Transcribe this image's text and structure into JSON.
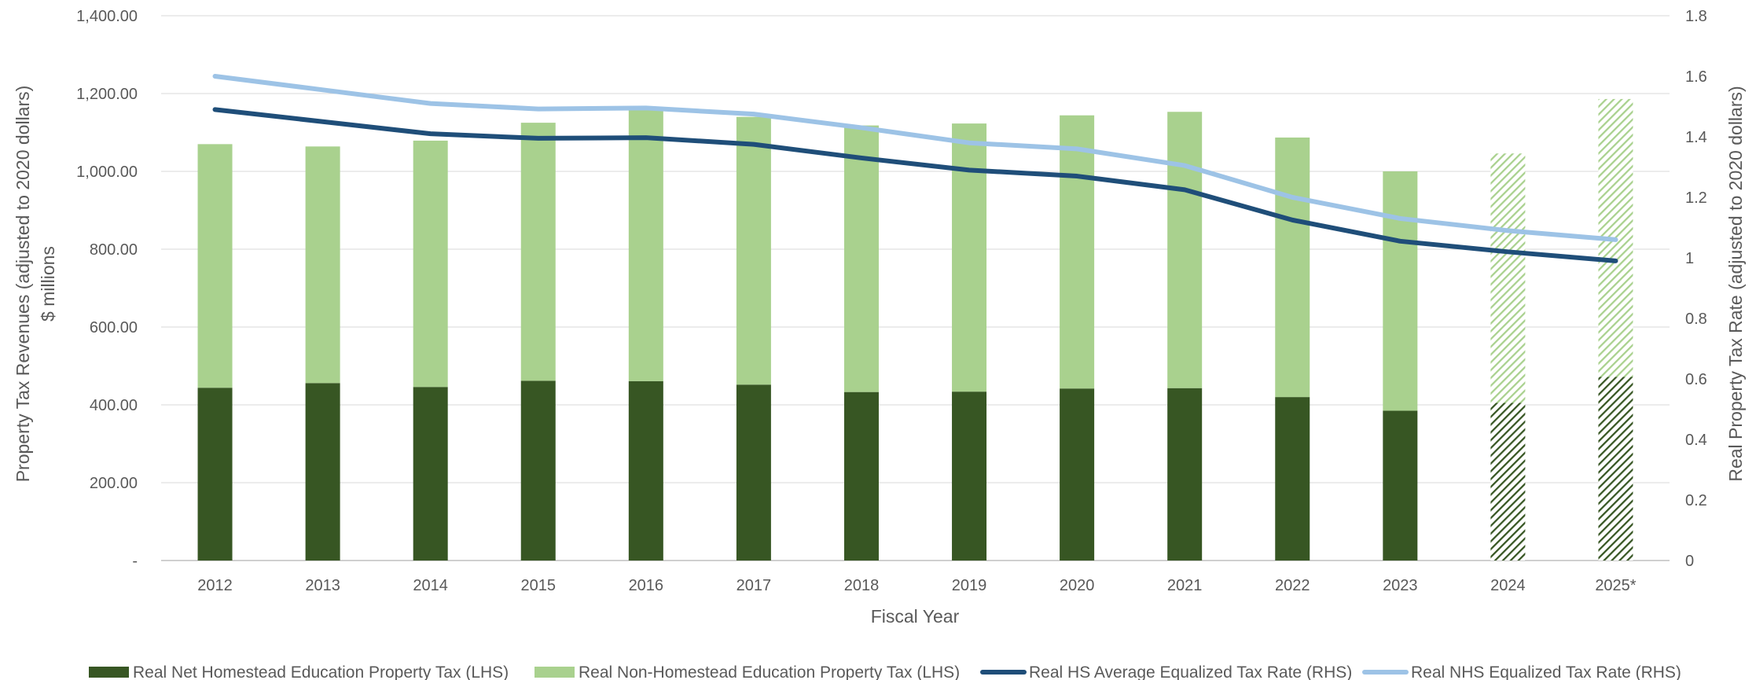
{
  "chart_data": {
    "type": "bar",
    "stacked": true,
    "categories": [
      "2012",
      "2013",
      "2014",
      "2015",
      "2016",
      "2017",
      "2018",
      "2019",
      "2020",
      "2021",
      "2022",
      "2023",
      "2024",
      "2025*"
    ],
    "projected_categories": [
      "2024",
      "2025*"
    ],
    "series": [
      {
        "name": "Real Net Homestead Education Property Tax (LHS)",
        "type": "bar",
        "axis": "left",
        "color": "#375623",
        "values": [
          444,
          456,
          446,
          462,
          461,
          452,
          433,
          434,
          442,
          443,
          420,
          385,
          405,
          472
        ]
      },
      {
        "name": "Real Non-Homestead Education Property Tax (LHS)",
        "type": "bar",
        "axis": "left",
        "color": "#a9d18e",
        "values": [
          626,
          608,
          633,
          663,
          697,
          688,
          685,
          689,
          702,
          710,
          667,
          615,
          641,
          714
        ]
      },
      {
        "name": "Real HS Average Equalized Tax Rate (RHS)",
        "type": "line",
        "axis": "right",
        "color": "#1f4e79",
        "values": [
          1.49,
          1.45,
          1.41,
          1.395,
          1.397,
          1.375,
          1.33,
          1.29,
          1.27,
          1.225,
          1.125,
          1.055,
          1.02,
          0.99
        ]
      },
      {
        "name": "Real NHS Equalized Tax Rate (RHS)",
        "type": "line",
        "axis": "right",
        "color": "#9dc3e6",
        "values": [
          1.6,
          1.555,
          1.51,
          1.492,
          1.495,
          1.475,
          1.43,
          1.38,
          1.36,
          1.305,
          1.2,
          1.13,
          1.09,
          1.06
        ]
      }
    ],
    "ylim_left": [
      0,
      1400
    ],
    "yticks_left": [
      "-",
      "200.00",
      "400.00",
      "600.00",
      "800.00",
      "1,000.00",
      "1,200.00",
      "1,400.00"
    ],
    "ylim_right": [
      0,
      1.8
    ],
    "yticks_right": [
      "0",
      "0.2",
      "0.4",
      "0.6",
      "0.8",
      "1",
      "1.2",
      "1.4",
      "1.6",
      "1.8"
    ],
    "xlabel": "Fiscal Year",
    "ylabel_left": [
      "Property Tax Revenues (adjusted to 2020 dollars)",
      "$ millions"
    ],
    "ylabel_right": "Real Property Tax Rate (adjusted to 2020 dollars)",
    "grid": true,
    "legend_position": "bottom"
  }
}
